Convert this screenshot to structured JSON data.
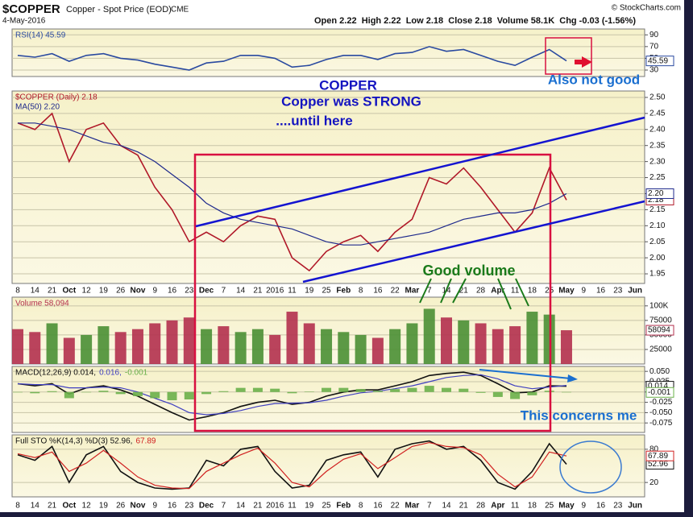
{
  "header": {
    "symbol": "$COPPER",
    "name": "Copper - Spot Price (EOD)",
    "exchange": "CME",
    "date": "4-May-2016",
    "quote": "Open 2.22  High 2.22  Low 2.18  Close 2.18  Volume 58.1K  Chg -0.03 (-1.56%)",
    "source": "© StockCharts.com"
  },
  "annotations": [
    "COPPER",
    "Copper was STRONG",
    "....until here",
    "Also not good",
    "Good volume",
    "This concerns me"
  ],
  "chart_data": [
    {
      "type": "line",
      "panel": "rsi",
      "ylim": [
        19,
        100
      ],
      "yticks": [
        90,
        70,
        50,
        30
      ],
      "grid": true,
      "series": [
        {
          "name": "RSI(14) 45.59",
          "color": "#2a4aa0",
          "last_label": "45.59",
          "values": [
            55,
            52,
            58,
            45,
            55,
            58,
            50,
            47,
            40,
            35,
            30,
            42,
            45,
            55,
            55,
            50,
            35,
            38,
            48,
            55,
            55,
            48,
            58,
            60,
            70,
            62,
            65,
            55,
            45,
            38,
            52,
            65,
            45.59,
            null,
            null,
            null,
            null
          ]
        }
      ]
    },
    {
      "type": "line",
      "panel": "price",
      "ylim": [
        1.92,
        2.52
      ],
      "yticks": [
        {
          "value": 2.5,
          "label": "2.50"
        },
        2.45,
        {
          "value": 2.4,
          "label": "2.40"
        },
        2.35,
        {
          "value": 2.3,
          "label": "2.30"
        },
        2.25,
        {
          "value": 2.2,
          "label": "2.20"
        },
        2.15,
        {
          "value": 2.1,
          "label": "2.10"
        },
        2.05,
        {
          "value": 2.0,
          "label": "2.00"
        },
        1.95
      ],
      "grid": true,
      "categories": [
        "8",
        "14",
        "21",
        "Oct",
        "12",
        "19",
        "26",
        "Nov",
        "9",
        "16",
        "23",
        "Dec",
        "7",
        "14",
        "21",
        "2016",
        "11",
        "19",
        "25",
        "Feb",
        "8",
        "16",
        "22",
        "Mar",
        "7",
        "14",
        "21",
        "28",
        "Apr",
        "11",
        "18",
        "25",
        "May",
        "9",
        "16",
        "23",
        "Jun"
      ],
      "series": [
        {
          "name": "$COPPER (Daily) 2.18",
          "color": "#b01828",
          "last_label": "2.18",
          "values": [
            2.42,
            2.4,
            2.45,
            2.3,
            2.4,
            2.42,
            2.35,
            2.32,
            2.22,
            2.15,
            2.05,
            2.08,
            2.05,
            2.1,
            2.13,
            2.12,
            2.0,
            1.96,
            2.02,
            2.05,
            2.07,
            2.02,
            2.08,
            2.12,
            2.25,
            2.23,
            2.28,
            2.22,
            2.15,
            2.08,
            2.14,
            2.28,
            2.18,
            null,
            null,
            null,
            null
          ]
        },
        {
          "name": "MA(50) 2.20",
          "color": "#1f2a8c",
          "last_label": "2.20",
          "values": [
            2.42,
            2.42,
            2.41,
            2.4,
            2.38,
            2.36,
            2.35,
            2.33,
            2.3,
            2.26,
            2.22,
            2.17,
            2.14,
            2.12,
            2.11,
            2.1,
            2.09,
            2.07,
            2.05,
            2.04,
            2.04,
            2.05,
            2.06,
            2.07,
            2.08,
            2.1,
            2.12,
            2.13,
            2.14,
            2.14,
            2.15,
            2.17,
            2.2,
            null,
            null,
            null,
            null
          ]
        }
      ]
    },
    {
      "type": "bar",
      "panel": "volume",
      "ylim": [
        0,
        115000
      ],
      "yticks": [
        {
          "value": 100000,
          "label": "100K"
        },
        75000,
        50000,
        25000
      ],
      "grid": true,
      "up_color": "#4a8f34",
      "down_color": "#b3304e",
      "series": [
        {
          "name": "Volume 58,094",
          "color": "#b3304e",
          "last_label": "58094",
          "values": [
            60000,
            55000,
            70000,
            45000,
            50000,
            65000,
            55000,
            60000,
            70000,
            75000,
            80000,
            60000,
            65000,
            55000,
            60000,
            50000,
            90000,
            70000,
            60000,
            55000,
            50000,
            45000,
            60000,
            70000,
            95000,
            80000,
            75000,
            70000,
            60000,
            65000,
            90000,
            85000,
            58094,
            null,
            null,
            null,
            null
          ]
        }
      ]
    },
    {
      "type": "line",
      "panel": "macd",
      "ylim": [
        -0.098,
        0.062
      ],
      "yticks": [
        {
          "value": 0.05,
          "label": "0.050"
        },
        {
          "value": 0.025,
          "label": "0.025"
        },
        {
          "value": 0,
          "label": "0.000"
        },
        {
          "value": -0.025,
          "label": "-0.025"
        },
        {
          "value": -0.05,
          "label": "-0.050"
        },
        {
          "value": -0.075,
          "label": "-0.075"
        }
      ],
      "grid": true,
      "series": [
        {
          "name": "MACD(12,26,9) 0.014,",
          "color": "#111111",
          "last_label": "0.014",
          "values": [
            0.02,
            0.015,
            0.02,
            -0.005,
            0.01,
            0.015,
            0.005,
            -0.01,
            -0.03,
            -0.05,
            -0.068,
            -0.06,
            -0.05,
            -0.035,
            -0.025,
            -0.02,
            -0.03,
            -0.025,
            -0.01,
            0.0,
            0.005,
            0.005,
            0.015,
            0.025,
            0.04,
            0.045,
            0.048,
            0.04,
            0.02,
            -0.002,
            0.0,
            0.015,
            0.014,
            null,
            null,
            null,
            null
          ]
        },
        {
          "name": "0.016,",
          "color": "#4040c0",
          "values": [
            0.02,
            0.018,
            0.018,
            0.01,
            0.01,
            0.012,
            0.01,
            0.0,
            -0.015,
            -0.03,
            -0.05,
            -0.055,
            -0.052,
            -0.045,
            -0.035,
            -0.028,
            -0.027,
            -0.026,
            -0.02,
            -0.01,
            -0.002,
            0.002,
            0.008,
            0.015,
            0.025,
            0.035,
            0.04,
            0.042,
            0.032,
            0.015,
            0.008,
            0.012,
            0.016,
            null,
            null,
            null,
            null
          ]
        },
        {
          "name": "-0.001",
          "color": "#6ab04a",
          "kind": "bar",
          "last_label": "-0.001",
          "values": [
            0,
            -0.003,
            0.002,
            -0.015,
            0,
            0.003,
            -0.005,
            -0.01,
            -0.015,
            -0.02,
            -0.018,
            -0.005,
            0.002,
            0.01,
            0.01,
            0.008,
            -0.003,
            0.001,
            0.01,
            0.01,
            0.007,
            0.003,
            0.007,
            0.01,
            0.015,
            0.01,
            0.008,
            -0.002,
            -0.012,
            -0.017,
            -0.008,
            0.003,
            -0.001,
            null,
            null,
            null,
            null
          ]
        }
      ]
    },
    {
      "type": "line",
      "panel": "sto",
      "ylim": [
        -6,
        106
      ],
      "yticks": [
        80,
        20
      ],
      "grid": true,
      "categories": [
        "8",
        "14",
        "21",
        "Oct",
        "12",
        "19",
        "26",
        "Nov",
        "9",
        "16",
        "23",
        "Dec",
        "7",
        "14",
        "21",
        "2016",
        "11",
        "19",
        "25",
        "Feb",
        "8",
        "16",
        "22",
        "Mar",
        "7",
        "14",
        "21",
        "28",
        "Apr",
        "11",
        "18",
        "25",
        "May",
        "9",
        "16",
        "23",
        "Jun"
      ],
      "series": [
        {
          "name": "Full STO %K(14,3) %D(3) 52.96,",
          "color": "#111111",
          "last_label": "52.96",
          "values": [
            70,
            60,
            85,
            20,
            70,
            85,
            40,
            20,
            10,
            8,
            10,
            60,
            50,
            80,
            85,
            40,
            10,
            15,
            60,
            70,
            75,
            30,
            80,
            90,
            95,
            80,
            85,
            60,
            20,
            8,
            40,
            90,
            52.96,
            null,
            null,
            null,
            null
          ]
        },
        {
          "name": "67.89",
          "color": "#d02020",
          "last_label": "67.89",
          "values": [
            72,
            65,
            75,
            40,
            55,
            78,
            55,
            30,
            15,
            10,
            9,
            40,
            55,
            70,
            82,
            55,
            20,
            12,
            40,
            62,
            72,
            45,
            65,
            85,
            92,
            85,
            83,
            70,
            35,
            12,
            30,
            75,
            67.89,
            null,
            null,
            null,
            null
          ]
        }
      ]
    }
  ]
}
